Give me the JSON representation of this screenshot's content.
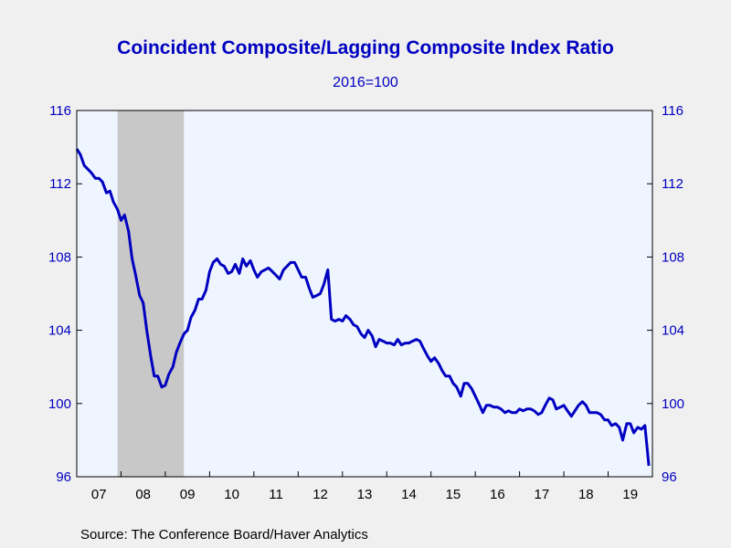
{
  "chart_data": {
    "type": "line",
    "title": "Coincident Composite/Lagging Composite Index Ratio",
    "subtitle": "2016=100",
    "source": "Source:  The Conference Board/Haver Analytics",
    "ylim": [
      96,
      116
    ],
    "yticks": [
      96,
      100,
      104,
      108,
      112,
      116
    ],
    "ytick_labels": [
      "96",
      "100",
      "104",
      "108",
      "112",
      "116"
    ],
    "xlim": [
      2007.0,
      2020.0
    ],
    "xtick_labels": [
      "07",
      "08",
      "09",
      "10",
      "11",
      "12",
      "13",
      "14",
      "15",
      "16",
      "17",
      "18",
      "19"
    ],
    "x_label_positions": [
      2007.5,
      2008.5,
      2009.5,
      2010.5,
      2011.5,
      2012.5,
      2013.5,
      2014.5,
      2015.5,
      2016.5,
      2017.5,
      2018.5,
      2019.5
    ],
    "recession": [
      2007.92,
      2009.42
    ],
    "colors": {
      "line": "#0000c0",
      "text": "#0000c0",
      "plot_bg": "#eef5ff",
      "recession": "#c8c8c8",
      "page_bg": "#f0f0f0"
    },
    "grid": false,
    "series": [
      {
        "x": [
          2007.0,
          2007.08,
          2007.17,
          2007.25,
          2007.33,
          2007.42,
          2007.5,
          2007.58,
          2007.67,
          2007.75,
          2007.83,
          2007.92,
          2008.0,
          2008.08,
          2008.17,
          2008.25,
          2008.33,
          2008.42,
          2008.5,
          2008.58,
          2008.67,
          2008.75,
          2008.83,
          2008.92,
          2009.0,
          2009.08,
          2009.17,
          2009.25,
          2009.33,
          2009.42,
          2009.5,
          2009.58,
          2009.67,
          2009.75,
          2009.83,
          2009.92,
          2010.0,
          2010.08,
          2010.17,
          2010.25,
          2010.33,
          2010.42,
          2010.5,
          2010.58,
          2010.67,
          2010.75,
          2010.83,
          2010.92,
          2011.0,
          2011.08,
          2011.17,
          2011.25,
          2011.33,
          2011.42,
          2011.5,
          2011.58,
          2011.67,
          2011.75,
          2011.83,
          2011.92,
          2012.0,
          2012.08,
          2012.17,
          2012.25,
          2012.33,
          2012.42,
          2012.5,
          2012.58,
          2012.67,
          2012.75,
          2012.83,
          2012.92,
          2013.0,
          2013.08,
          2013.17,
          2013.25,
          2013.33,
          2013.42,
          2013.5,
          2013.58,
          2013.67,
          2013.75,
          2013.83,
          2013.92,
          2014.0,
          2014.08,
          2014.17,
          2014.25,
          2014.33,
          2014.42,
          2014.5,
          2014.58,
          2014.67,
          2014.75,
          2014.83,
          2014.92,
          2015.0,
          2015.08,
          2015.17,
          2015.25,
          2015.33,
          2015.42,
          2015.5,
          2015.58,
          2015.67,
          2015.75,
          2015.83,
          2015.92,
          2016.0,
          2016.08,
          2016.17,
          2016.25,
          2016.33,
          2016.42,
          2016.5,
          2016.58,
          2016.67,
          2016.75,
          2016.83,
          2016.92,
          2017.0,
          2017.08,
          2017.17,
          2017.25,
          2017.33,
          2017.42,
          2017.5,
          2017.58,
          2017.67,
          2017.75,
          2017.83,
          2017.92,
          2018.0,
          2018.08,
          2018.17,
          2018.25,
          2018.33,
          2018.42,
          2018.5,
          2018.58,
          2018.67,
          2018.75,
          2018.83,
          2018.92,
          2019.0,
          2019.08,
          2019.17,
          2019.25,
          2019.33,
          2019.42,
          2019.5,
          2019.58,
          2019.67,
          2019.75,
          2019.83,
          2019.92
        ],
        "values": [
          113.9,
          113.6,
          113.0,
          112.8,
          112.6,
          112.3,
          112.3,
          112.1,
          111.5,
          111.6,
          111.0,
          110.6,
          110.0,
          110.3,
          109.4,
          107.9,
          107.0,
          105.9,
          105.5,
          104.0,
          102.6,
          101.5,
          101.5,
          100.9,
          101.0,
          101.6,
          102.0,
          102.8,
          103.3,
          103.8,
          104.0,
          104.7,
          105.1,
          105.7,
          105.7,
          106.2,
          107.2,
          107.7,
          107.9,
          107.6,
          107.5,
          107.1,
          107.2,
          107.6,
          107.1,
          107.9,
          107.5,
          107.8,
          107.3,
          106.9,
          107.2,
          107.3,
          107.4,
          107.2,
          107.0,
          106.8,
          107.3,
          107.5,
          107.7,
          107.7,
          107.3,
          106.9,
          106.9,
          106.3,
          105.8,
          105.9,
          106.0,
          106.5,
          107.3,
          104.6,
          104.5,
          104.6,
          104.5,
          104.8,
          104.6,
          104.3,
          104.2,
          103.8,
          103.6,
          104.0,
          103.7,
          103.1,
          103.5,
          103.4,
          103.3,
          103.3,
          103.2,
          103.5,
          103.2,
          103.3,
          103.3,
          103.4,
          103.5,
          103.4,
          103.0,
          102.6,
          102.3,
          102.5,
          102.2,
          101.8,
          101.5,
          101.5,
          101.1,
          100.9,
          100.4,
          101.1,
          101.1,
          100.8,
          100.4,
          100.0,
          99.5,
          99.9,
          99.9,
          99.8,
          99.8,
          99.7,
          99.5,
          99.6,
          99.5,
          99.5,
          99.7,
          99.6,
          99.7,
          99.7,
          99.6,
          99.4,
          99.5,
          99.9,
          100.3,
          100.2,
          99.7,
          99.8,
          99.9,
          99.6,
          99.3,
          99.6,
          99.9,
          100.1,
          99.9,
          99.5,
          99.5,
          99.5,
          99.4,
          99.1,
          99.1,
          98.8,
          98.9,
          98.7,
          98.0,
          98.9,
          98.9,
          98.4,
          98.7,
          98.6,
          98.8,
          96.6
        ]
      }
    ]
  }
}
